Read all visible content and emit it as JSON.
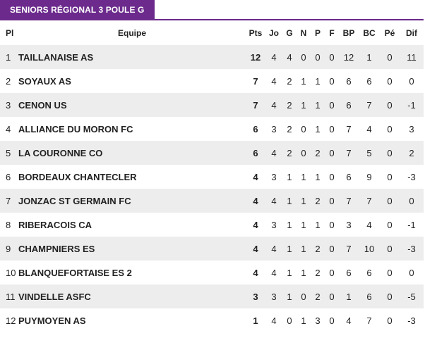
{
  "header": {
    "title": "SENIORS RÉGIONAL 3 POULE G"
  },
  "columns": [
    "Pl",
    "Equipe",
    "Pts",
    "Jo",
    "G",
    "N",
    "P",
    "F",
    "BP",
    "BC",
    "Pé",
    "Dif"
  ],
  "rows": [
    [
      "1",
      "TAILLANAISE AS",
      "12",
      "4",
      "4",
      "0",
      "0",
      "0",
      "12",
      "1",
      "0",
      "11"
    ],
    [
      "2",
      "SOYAUX AS",
      "7",
      "4",
      "2",
      "1",
      "1",
      "0",
      "6",
      "6",
      "0",
      "0"
    ],
    [
      "3",
      "CENON US",
      "7",
      "4",
      "2",
      "1",
      "1",
      "0",
      "6",
      "7",
      "0",
      "-1"
    ],
    [
      "4",
      "ALLIANCE DU MORON FC",
      "6",
      "3",
      "2",
      "0",
      "1",
      "0",
      "7",
      "4",
      "0",
      "3"
    ],
    [
      "5",
      "LA COURONNE CO",
      "6",
      "4",
      "2",
      "0",
      "2",
      "0",
      "7",
      "5",
      "0",
      "2"
    ],
    [
      "6",
      "BORDEAUX CHANTECLER",
      "4",
      "3",
      "1",
      "1",
      "1",
      "0",
      "6",
      "9",
      "0",
      "-3"
    ],
    [
      "7",
      "JONZAC ST GERMAIN FC",
      "4",
      "4",
      "1",
      "1",
      "2",
      "0",
      "7",
      "7",
      "0",
      "0"
    ],
    [
      "8",
      "RIBERACOIS CA",
      "4",
      "3",
      "1",
      "1",
      "1",
      "0",
      "3",
      "4",
      "0",
      "-1"
    ],
    [
      "9",
      "CHAMPNIERS ES",
      "4",
      "4",
      "1",
      "1",
      "2",
      "0",
      "7",
      "10",
      "0",
      "-3"
    ],
    [
      "10",
      "BLANQUEFORTAISE ES 2",
      "4",
      "4",
      "1",
      "1",
      "2",
      "0",
      "6",
      "6",
      "0",
      "0"
    ],
    [
      "11",
      "VINDELLE ASFC",
      "3",
      "3",
      "1",
      "0",
      "2",
      "0",
      "1",
      "6",
      "0",
      "-5"
    ],
    [
      "12",
      "PUYMOYEN AS",
      "1",
      "4",
      "0",
      "1",
      "3",
      "0",
      "4",
      "7",
      "0",
      "-3"
    ]
  ]
}
